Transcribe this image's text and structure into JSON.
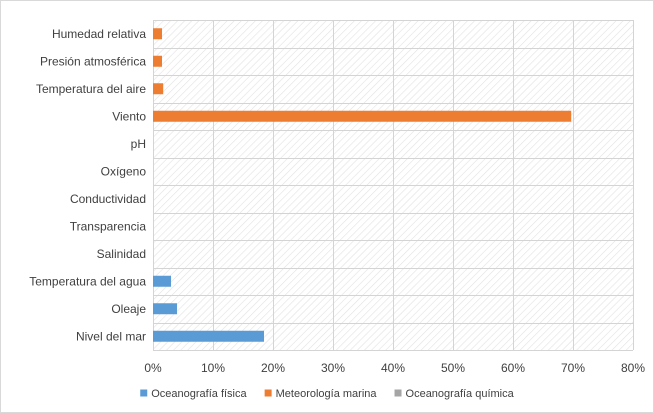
{
  "chart_data": {
    "type": "bar",
    "orientation": "horizontal",
    "categories": [
      "Humedad relativa",
      "Presión atmosférica",
      "Temperatura del aire",
      "Viento",
      "pH",
      "Oxígeno",
      "Conductividad",
      "Transparencia",
      "Salinidad",
      "Temperatura del agua",
      "Oleaje",
      "Nivel del mar"
    ],
    "series": [
      {
        "name": "Oceanografía física",
        "color": "#5b9bd5",
        "values": [
          0,
          0,
          0,
          0,
          0,
          0,
          0,
          0,
          0,
          3,
          4,
          18.5
        ]
      },
      {
        "name": "Meteorología marina",
        "color": "#ed7d31",
        "values": [
          1.5,
          1.5,
          1.7,
          69.7,
          0,
          0,
          0,
          0,
          0,
          0,
          0,
          0
        ]
      },
      {
        "name": "Oceanografía química",
        "color": "#a5a5a5",
        "values": [
          0,
          0,
          0,
          0,
          0,
          0,
          0,
          0,
          0,
          0,
          0,
          0
        ]
      }
    ],
    "x_ticks": [
      "0%",
      "10%",
      "20%",
      "30%",
      "40%",
      "50%",
      "60%",
      "70%",
      "80%"
    ],
    "xlim": [
      0,
      80
    ],
    "title": "",
    "xlabel": "",
    "ylabel": "",
    "grid": true,
    "legend_position": "bottom"
  }
}
